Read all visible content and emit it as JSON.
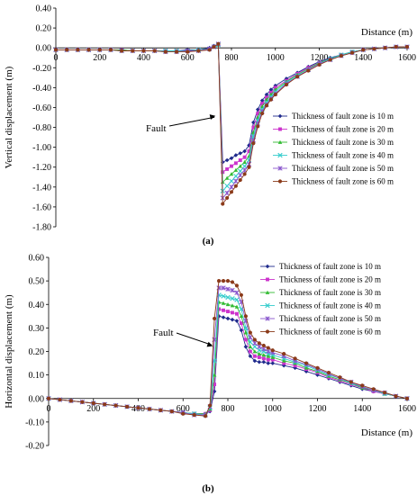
{
  "chart_data": [
    {
      "type": "line",
      "panel_label": "(a)",
      "title": "",
      "xlabel": "Distance (m)",
      "ylabel": "Vertical displacement (m)",
      "xlim": [
        0,
        1600
      ],
      "ylim": [
        -1.8,
        0.4
      ],
      "xticks": [
        0,
        200,
        400,
        600,
        800,
        1000,
        1200,
        1400,
        1600
      ],
      "xtick_labels": [
        "0",
        "200",
        "400",
        "600",
        "800",
        "1000",
        "1200",
        "1400",
        "1600"
      ],
      "yticks": [
        0.4,
        0.2,
        0.0,
        -0.2,
        -0.4,
        -0.6,
        -0.8,
        -1.0,
        -1.2,
        -1.4,
        -1.6,
        -1.8
      ],
      "ytick_labels": [
        "0.40",
        "0.20",
        "0.00",
        "-0.20",
        "-0.40",
        "-0.60",
        "-0.80",
        "-1.00",
        "-1.20",
        "-1.40",
        "-1.60",
        "-1.80"
      ],
      "legend_position": "right",
      "annotation": {
        "text": "Fault",
        "x": 735,
        "y": -0.68
      },
      "x": [
        0,
        50,
        100,
        150,
        200,
        250,
        300,
        350,
        400,
        450,
        500,
        550,
        600,
        650,
        700,
        720,
        740,
        760,
        780,
        800,
        820,
        840,
        860,
        880,
        900,
        920,
        940,
        960,
        980,
        1000,
        1050,
        1100,
        1150,
        1200,
        1250,
        1300,
        1350,
        1400,
        1450,
        1500,
        1550,
        1600
      ],
      "series": [
        {
          "name": "Thickness of fault zone is 10 m",
          "color": "#1f2a8c",
          "marker": "diamond",
          "values": [
            -0.02,
            -0.02,
            -0.02,
            -0.02,
            -0.02,
            -0.02,
            -0.02,
            -0.03,
            -0.03,
            -0.03,
            -0.03,
            -0.03,
            -0.02,
            -0.02,
            0.0,
            0.02,
            0.03,
            -1.15,
            -1.13,
            -1.11,
            -1.08,
            -1.06,
            -1.04,
            -0.98,
            -0.75,
            -0.62,
            -0.53,
            -0.47,
            -0.42,
            -0.38,
            -0.31,
            -0.25,
            -0.19,
            -0.14,
            -0.1,
            -0.07,
            -0.04,
            -0.02,
            -0.01,
            0.0,
            0.01,
            0.01
          ]
        },
        {
          "name": "Thickness of fault zone is 20 m",
          "color": "#cc33cc",
          "marker": "square",
          "values": [
            -0.02,
            -0.02,
            -0.02,
            -0.02,
            -0.02,
            -0.02,
            -0.02,
            -0.03,
            -0.03,
            -0.03,
            -0.03,
            -0.03,
            -0.03,
            -0.02,
            -0.01,
            0.01,
            0.03,
            -1.25,
            -1.22,
            -1.19,
            -1.16,
            -1.13,
            -1.1,
            -1.04,
            -0.8,
            -0.66,
            -0.56,
            -0.5,
            -0.45,
            -0.4,
            -0.33,
            -0.26,
            -0.2,
            -0.15,
            -0.11,
            -0.07,
            -0.04,
            -0.02,
            -0.01,
            0.0,
            0.01,
            0.01
          ]
        },
        {
          "name": "Thickness of fault zone is 30 m",
          "color": "#33bb33",
          "marker": "triangle",
          "values": [
            -0.02,
            -0.02,
            -0.02,
            -0.02,
            -0.02,
            -0.02,
            -0.02,
            -0.03,
            -0.03,
            -0.03,
            -0.03,
            -0.03,
            -0.03,
            -0.02,
            -0.01,
            0.01,
            0.03,
            -1.35,
            -1.31,
            -1.27,
            -1.23,
            -1.19,
            -1.15,
            -1.09,
            -0.85,
            -0.7,
            -0.59,
            -0.52,
            -0.47,
            -0.42,
            -0.34,
            -0.27,
            -0.21,
            -0.15,
            -0.11,
            -0.07,
            -0.04,
            -0.02,
            -0.01,
            0.0,
            0.01,
            0.01
          ]
        },
        {
          "name": "Thickness of fault zone is 40 m",
          "color": "#33cccc",
          "marker": "x",
          "values": [
            -0.02,
            -0.02,
            -0.02,
            -0.02,
            -0.02,
            -0.02,
            -0.03,
            -0.03,
            -0.03,
            -0.03,
            -0.03,
            -0.03,
            -0.03,
            -0.02,
            -0.01,
            0.01,
            0.03,
            -1.44,
            -1.39,
            -1.34,
            -1.29,
            -1.24,
            -1.19,
            -1.13,
            -0.89,
            -0.73,
            -0.62,
            -0.55,
            -0.49,
            -0.44,
            -0.35,
            -0.28,
            -0.22,
            -0.16,
            -0.11,
            -0.07,
            -0.04,
            -0.02,
            -0.01,
            0.0,
            0.01,
            0.01
          ]
        },
        {
          "name": "Thickness of fault zone is 50 m",
          "color": "#8855cc",
          "marker": "star",
          "values": [
            -0.02,
            -0.02,
            -0.02,
            -0.02,
            -0.02,
            -0.02,
            -0.03,
            -0.03,
            -0.03,
            -0.03,
            -0.04,
            -0.04,
            -0.03,
            -0.03,
            -0.01,
            0.01,
            0.04,
            -1.51,
            -1.46,
            -1.4,
            -1.34,
            -1.28,
            -1.23,
            -1.17,
            -0.93,
            -0.76,
            -0.64,
            -0.57,
            -0.51,
            -0.46,
            -0.36,
            -0.29,
            -0.22,
            -0.16,
            -0.12,
            -0.08,
            -0.05,
            -0.02,
            -0.01,
            0.0,
            0.01,
            0.01
          ]
        },
        {
          "name": "Thickness of fault zone is 60 m",
          "color": "#8b3a1a",
          "marker": "circle",
          "values": [
            -0.02,
            -0.02,
            -0.02,
            -0.02,
            -0.02,
            -0.02,
            -0.03,
            -0.03,
            -0.03,
            -0.03,
            -0.04,
            -0.04,
            -0.04,
            -0.03,
            -0.02,
            0.01,
            0.04,
            -1.57,
            -1.51,
            -1.45,
            -1.39,
            -1.33,
            -1.27,
            -1.2,
            -0.96,
            -0.79,
            -0.66,
            -0.58,
            -0.52,
            -0.47,
            -0.37,
            -0.29,
            -0.23,
            -0.17,
            -0.12,
            -0.08,
            -0.05,
            -0.02,
            -0.01,
            0.0,
            0.01,
            0.01
          ]
        }
      ]
    },
    {
      "type": "line",
      "panel_label": "(b)",
      "title": "",
      "xlabel": "Distance (m)",
      "ylabel": "Horizontal displacement (m)",
      "xlim": [
        0,
        1600
      ],
      "ylim": [
        -0.2,
        0.6
      ],
      "xticks": [
        0,
        200,
        400,
        600,
        800,
        1000,
        1200,
        1400,
        1600
      ],
      "xtick_labels": [
        "0",
        "200",
        "400",
        "600",
        "800",
        "1000",
        "1200",
        "1400",
        "1600"
      ],
      "yticks": [
        0.6,
        0.5,
        0.4,
        0.3,
        0.2,
        0.1,
        0.0,
        -0.1,
        -0.2
      ],
      "ytick_labels": [
        "0.60",
        "0.50",
        "0.40",
        "0.30",
        "0.20",
        "0.10",
        "0.00",
        "-0.10",
        "-0.20"
      ],
      "legend_position": "top-right",
      "annotation": {
        "text": "Fault",
        "x": 740,
        "y": 0.22
      },
      "x": [
        0,
        50,
        100,
        150,
        200,
        250,
        300,
        350,
        400,
        450,
        500,
        550,
        600,
        650,
        700,
        720,
        740,
        760,
        780,
        800,
        820,
        840,
        860,
        880,
        900,
        920,
        940,
        960,
        980,
        1000,
        1050,
        1100,
        1150,
        1200,
        1250,
        1300,
        1350,
        1400,
        1450,
        1500,
        1550,
        1600
      ],
      "series": [
        {
          "name": "Thickness of fault zone is 10 m",
          "color": "#1f2a8c",
          "marker": "diamond",
          "values": [
            0.0,
            -0.005,
            -0.01,
            -0.015,
            -0.02,
            -0.025,
            -0.03,
            -0.035,
            -0.04,
            -0.045,
            -0.05,
            -0.055,
            -0.06,
            -0.065,
            -0.065,
            -0.055,
            0.03,
            0.35,
            0.345,
            0.34,
            0.335,
            0.33,
            0.29,
            0.22,
            0.18,
            0.16,
            0.155,
            0.155,
            0.15,
            0.15,
            0.14,
            0.13,
            0.115,
            0.1,
            0.085,
            0.07,
            0.055,
            0.04,
            0.03,
            0.02,
            0.01,
            0.0
          ]
        },
        {
          "name": "Thickness of fault zone is 20 m",
          "color": "#cc33cc",
          "marker": "square",
          "values": [
            0.0,
            -0.005,
            -0.01,
            -0.015,
            -0.02,
            -0.025,
            -0.03,
            -0.035,
            -0.04,
            -0.045,
            -0.05,
            -0.055,
            -0.06,
            -0.065,
            -0.065,
            -0.05,
            0.06,
            0.38,
            0.375,
            0.37,
            0.365,
            0.36,
            0.32,
            0.25,
            0.2,
            0.18,
            0.175,
            0.17,
            0.165,
            0.165,
            0.15,
            0.14,
            0.125,
            0.11,
            0.09,
            0.075,
            0.06,
            0.045,
            0.03,
            0.02,
            0.01,
            0.0
          ]
        },
        {
          "name": "Thickness of fault zone is 30 m",
          "color": "#33bb33",
          "marker": "triangle",
          "values": [
            0.0,
            -0.005,
            -0.01,
            -0.015,
            -0.02,
            -0.025,
            -0.03,
            -0.035,
            -0.04,
            -0.045,
            -0.05,
            -0.055,
            -0.06,
            -0.065,
            -0.065,
            -0.045,
            0.1,
            0.41,
            0.405,
            0.4,
            0.395,
            0.39,
            0.35,
            0.28,
            0.22,
            0.2,
            0.19,
            0.185,
            0.18,
            0.175,
            0.16,
            0.15,
            0.13,
            0.115,
            0.095,
            0.08,
            0.065,
            0.045,
            0.035,
            0.02,
            0.01,
            0.0
          ]
        },
        {
          "name": "Thickness of fault zone is 40 m",
          "color": "#33cccc",
          "marker": "x",
          "values": [
            0.0,
            -0.005,
            -0.01,
            -0.015,
            -0.02,
            -0.025,
            -0.03,
            -0.035,
            -0.04,
            -0.045,
            -0.05,
            -0.055,
            -0.06,
            -0.065,
            -0.07,
            -0.04,
            0.16,
            0.44,
            0.435,
            0.43,
            0.425,
            0.42,
            0.38,
            0.3,
            0.24,
            0.22,
            0.205,
            0.2,
            0.19,
            0.185,
            0.17,
            0.155,
            0.14,
            0.12,
            0.1,
            0.085,
            0.065,
            0.05,
            0.035,
            0.02,
            0.01,
            0.0
          ]
        },
        {
          "name": "Thickness of fault zone is 50 m",
          "color": "#8855cc",
          "marker": "star",
          "values": [
            0.0,
            -0.005,
            -0.01,
            -0.015,
            -0.02,
            -0.025,
            -0.03,
            -0.035,
            -0.04,
            -0.045,
            -0.05,
            -0.055,
            -0.06,
            -0.07,
            -0.07,
            -0.035,
            0.25,
            0.47,
            0.47,
            0.465,
            0.46,
            0.45,
            0.41,
            0.33,
            0.26,
            0.235,
            0.22,
            0.21,
            0.2,
            0.195,
            0.18,
            0.16,
            0.145,
            0.125,
            0.105,
            0.085,
            0.07,
            0.05,
            0.035,
            0.025,
            0.01,
            0.0
          ]
        },
        {
          "name": "Thickness of fault zone is 60 m",
          "color": "#8b3a1a",
          "marker": "circle",
          "values": [
            0.0,
            -0.005,
            -0.01,
            -0.015,
            -0.02,
            -0.025,
            -0.03,
            -0.035,
            -0.04,
            -0.045,
            -0.05,
            -0.055,
            -0.065,
            -0.07,
            -0.075,
            -0.03,
            0.34,
            0.5,
            0.5,
            0.5,
            0.495,
            0.48,
            0.44,
            0.35,
            0.28,
            0.25,
            0.235,
            0.225,
            0.215,
            0.205,
            0.19,
            0.17,
            0.15,
            0.13,
            0.11,
            0.09,
            0.07,
            0.055,
            0.04,
            0.025,
            0.01,
            0.0
          ]
        }
      ]
    }
  ]
}
